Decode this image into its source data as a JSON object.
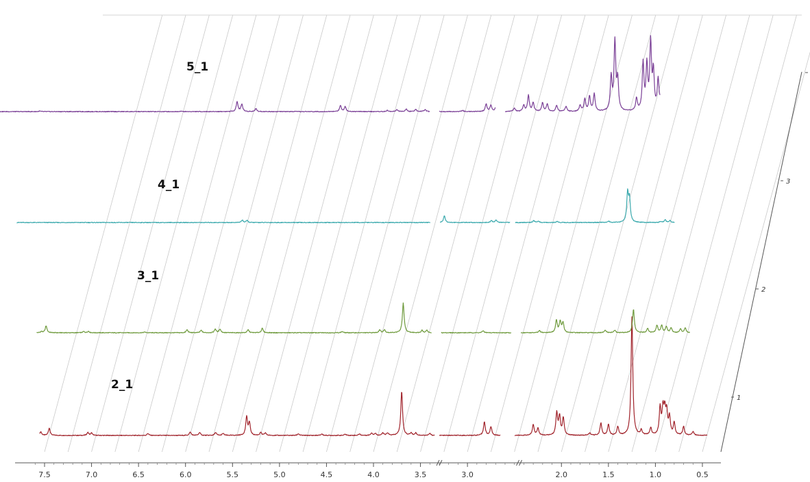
{
  "chart_data": {
    "type": "line",
    "title": "",
    "xlabel": "",
    "ylabel": "",
    "x_reversed": true,
    "xlim": [
      7.6,
      0.4
    ],
    "x_ticks": [
      "7.5",
      "7.0",
      "6.5",
      "6.0",
      "5.5",
      "5.0",
      "4.5",
      "4.0",
      "3.5",
      "3.0",
      "2.0",
      "1.5",
      "1.0",
      "0.5"
    ],
    "z_ticks": [
      "1",
      "2",
      "3",
      "4"
    ],
    "grid": true,
    "colors": {
      "2_1": "#a0222a",
      "3_1": "#6e9a3c",
      "4_1": "#3aa9ad",
      "5_1": "#7a3f96"
    },
    "series": [
      {
        "name": "2_1",
        "range": [
          7.55,
          0.45
        ],
        "gaps": [
          [
            3.35,
            3.3
          ],
          [
            2.65,
            2.5
          ]
        ],
        "peaks": [
          [
            7.54,
            0.15
          ],
          [
            7.45,
            0.3
          ],
          [
            7.04,
            0.12
          ],
          [
            7.0,
            0.1
          ],
          [
            6.4,
            0.08
          ],
          [
            5.95,
            0.14
          ],
          [
            5.85,
            0.12
          ],
          [
            5.68,
            0.12
          ],
          [
            5.6,
            0.08
          ],
          [
            5.35,
            0.75
          ],
          [
            5.32,
            0.5
          ],
          [
            5.2,
            0.12
          ],
          [
            5.15,
            0.1
          ],
          [
            4.8,
            0.07
          ],
          [
            4.55,
            0.06
          ],
          [
            4.3,
            0.05
          ],
          [
            4.15,
            0.06
          ],
          [
            4.02,
            0.1
          ],
          [
            3.98,
            0.08
          ],
          [
            3.9,
            0.1
          ],
          [
            3.85,
            0.1
          ],
          [
            3.7,
            1.8
          ],
          [
            3.6,
            0.1
          ],
          [
            3.55,
            0.1
          ],
          [
            3.4,
            0.08
          ],
          [
            2.82,
            0.55
          ],
          [
            2.75,
            0.35
          ],
          [
            2.3,
            0.45
          ],
          [
            2.25,
            0.3
          ],
          [
            2.05,
            0.9
          ],
          [
            2.02,
            0.75
          ],
          [
            1.98,
            0.7
          ],
          [
            1.7,
            0.1
          ],
          [
            1.58,
            0.5
          ],
          [
            1.5,
            0.45
          ],
          [
            1.4,
            0.35
          ],
          [
            1.25,
            4.8
          ],
          [
            1.15,
            0.2
          ],
          [
            1.05,
            0.3
          ],
          [
            0.95,
            1.1
          ],
          [
            0.92,
            1.0
          ],
          [
            0.9,
            0.9
          ],
          [
            0.88,
            0.85
          ],
          [
            0.85,
            0.7
          ],
          [
            0.8,
            0.5
          ],
          [
            0.7,
            0.35
          ],
          [
            0.6,
            0.15
          ]
        ]
      },
      {
        "name": "3_1",
        "range": [
          7.35,
          0.4
        ],
        "gaps": [
          [
            3.15,
            3.05
          ],
          [
            2.3,
            2.2
          ]
        ],
        "peaks": [
          [
            7.3,
            0.05
          ],
          [
            7.25,
            0.28
          ],
          [
            6.85,
            0.05
          ],
          [
            6.8,
            0.06
          ],
          [
            6.2,
            0.03
          ],
          [
            5.75,
            0.12
          ],
          [
            5.6,
            0.1
          ],
          [
            5.45,
            0.15
          ],
          [
            5.4,
            0.15
          ],
          [
            5.1,
            0.12
          ],
          [
            4.95,
            0.18
          ],
          [
            4.1,
            0.05
          ],
          [
            3.7,
            0.12
          ],
          [
            3.65,
            0.12
          ],
          [
            3.45,
            1.2
          ],
          [
            3.25,
            0.1
          ],
          [
            3.2,
            0.1
          ],
          [
            2.6,
            0.08
          ],
          [
            2.0,
            0.08
          ],
          [
            1.82,
            0.5
          ],
          [
            1.78,
            0.45
          ],
          [
            1.75,
            0.4
          ],
          [
            1.3,
            0.1
          ],
          [
            1.2,
            0.1
          ],
          [
            1.0,
            0.95
          ],
          [
            0.85,
            0.18
          ],
          [
            0.75,
            0.3
          ],
          [
            0.7,
            0.3
          ],
          [
            0.65,
            0.25
          ],
          [
            0.6,
            0.2
          ],
          [
            0.5,
            0.15
          ],
          [
            0.45,
            0.2
          ]
        ]
      },
      {
        "name": "4_1",
        "range": [
          7.3,
          0.3
        ],
        "gaps": [
          [
            2.9,
            2.8
          ],
          [
            2.05,
            2.0
          ]
        ],
        "peaks": [
          [
            4.9,
            0.1
          ],
          [
            4.85,
            0.08
          ],
          [
            2.75,
            0.28
          ],
          [
            2.25,
            0.08
          ],
          [
            2.2,
            0.1
          ],
          [
            1.8,
            0.08
          ],
          [
            1.75,
            0.05
          ],
          [
            1.55,
            0.05
          ],
          [
            1.0,
            0.05
          ],
          [
            0.8,
            1.15
          ],
          [
            0.78,
            0.9
          ],
          [
            0.45,
            0.05
          ],
          [
            0.4,
            0.1
          ],
          [
            0.35,
            0.08
          ],
          [
            0.2,
            0.04
          ]
        ]
      },
      {
        "name": "5_1",
        "range": [
          7.3,
          0.2
        ],
        "gaps": [
          [
            2.65,
            2.55
          ],
          [
            1.95,
            1.85
          ]
        ],
        "peaks": [
          [
            6.8,
            0.02
          ],
          [
            5.3,
            0.02
          ],
          [
            4.7,
            0.4
          ],
          [
            4.65,
            0.3
          ],
          [
            4.5,
            0.12
          ],
          [
            3.6,
            0.25
          ],
          [
            3.55,
            0.2
          ],
          [
            3.1,
            0.05
          ],
          [
            3.0,
            0.08
          ],
          [
            2.9,
            0.1
          ],
          [
            2.8,
            0.1
          ],
          [
            2.7,
            0.08
          ],
          [
            2.3,
            0.05
          ],
          [
            2.05,
            0.3
          ],
          [
            2.0,
            0.25
          ],
          [
            1.95,
            0.15
          ],
          [
            1.75,
            0.15
          ],
          [
            1.65,
            0.25
          ],
          [
            1.6,
            0.65
          ],
          [
            1.55,
            0.35
          ],
          [
            1.45,
            0.35
          ],
          [
            1.4,
            0.3
          ],
          [
            1.3,
            0.25
          ],
          [
            1.2,
            0.2
          ],
          [
            1.05,
            0.25
          ],
          [
            1.0,
            0.5
          ],
          [
            0.95,
            0.6
          ],
          [
            0.9,
            0.7
          ],
          [
            0.72,
            1.35
          ],
          [
            0.68,
            2.8
          ],
          [
            0.65,
            1.2
          ],
          [
            0.45,
            0.5
          ],
          [
            0.38,
            1.9
          ],
          [
            0.34,
            1.8
          ],
          [
            0.3,
            2.7
          ],
          [
            0.27,
            1.5
          ],
          [
            0.22,
            1.2
          ],
          [
            0.18,
            1.3
          ],
          [
            0.12,
            0.6
          ]
        ]
      }
    ]
  }
}
